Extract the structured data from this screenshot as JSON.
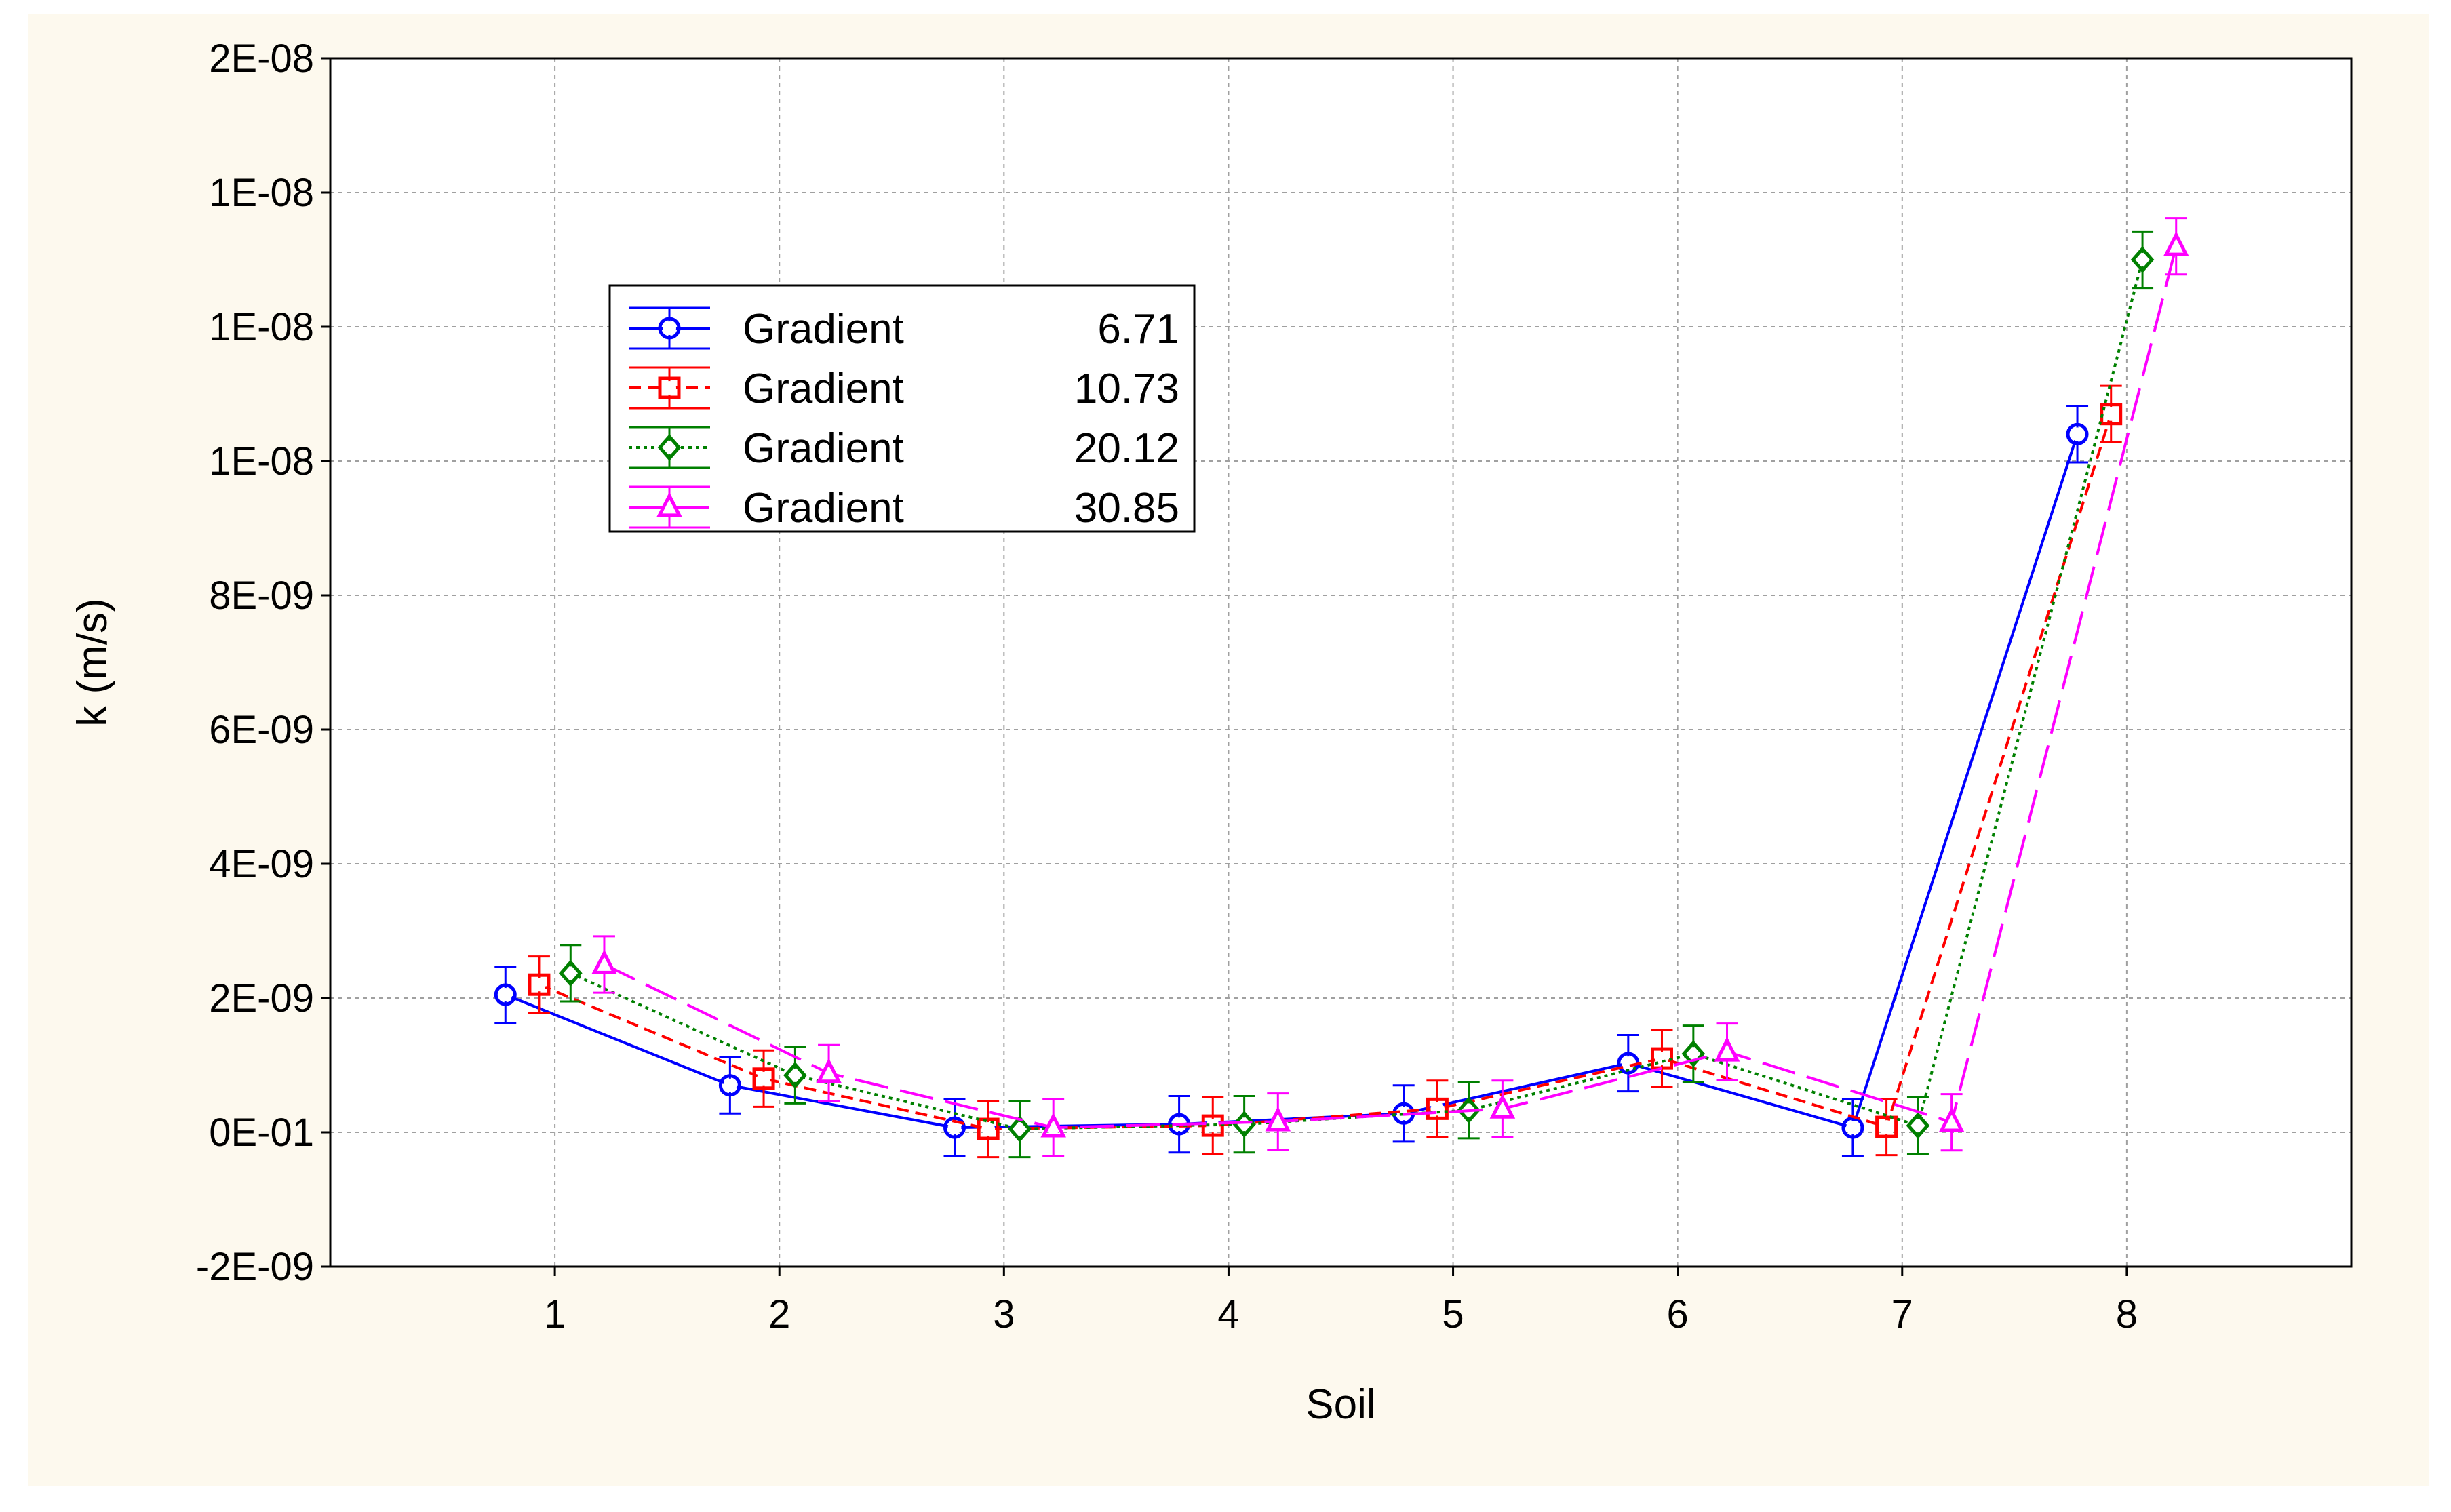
{
  "chart_data": {
    "type": "line",
    "xlabel": "Soil",
    "ylabel": "k (m/s)",
    "categories": [
      "1",
      "2",
      "3",
      "4",
      "5",
      "6",
      "7",
      "8"
    ],
    "ylim": [
      -2e-09,
      1.6e-08
    ],
    "y_ticks": [
      -2e-09,
      0,
      2e-09,
      4e-09,
      6e-09,
      8e-09,
      1e-08,
      1.2e-08,
      1.4e-08,
      1.6e-08
    ],
    "y_tick_labels": [
      "-2E-09",
      "0E-01",
      "2E-09",
      "4E-09",
      "6E-09",
      "8E-09",
      "1E-08",
      "1E-08",
      "1E-08",
      "2E-08"
    ],
    "grid": true,
    "legend_position": "top-left",
    "series": [
      {
        "name": "Gradient",
        "value_label": "6.71",
        "color": "#0000ff",
        "marker": "circle",
        "dash": "solid",
        "offset": -0.22,
        "values": [
          2.05e-09,
          7e-10,
          7e-11,
          1.2e-10,
          2.8e-10,
          1.03e-09,
          7e-11,
          1.04e-08
        ],
        "errors": [
          4.2e-10,
          4.2e-10,
          4.2e-10,
          4.2e-10,
          4.2e-10,
          4.2e-10,
          4.2e-10,
          4.2e-10
        ]
      },
      {
        "name": "Gradient",
        "value_label": "10.73",
        "color": "#ff0000",
        "marker": "square",
        "dash": "dashed",
        "offset": -0.07,
        "values": [
          2.2e-09,
          8e-10,
          5e-11,
          1e-10,
          3.5e-10,
          1.1e-09,
          8e-11,
          1.07e-08
        ],
        "errors": [
          4.2e-10,
          4.2e-10,
          4.2e-10,
          4.2e-10,
          4.2e-10,
          4.2e-10,
          4.2e-10,
          4.2e-10
        ]
      },
      {
        "name": "Gradient",
        "value_label": "20.12",
        "color": "#008000",
        "marker": "diamond",
        "dash": "dotted",
        "offset": 0.07,
        "values": [
          2.37e-09,
          8.5e-10,
          5e-11,
          1.2e-10,
          3.3e-10,
          1.17e-09,
          1e-10,
          1.3e-08
        ],
        "errors": [
          4.2e-10,
          4.2e-10,
          4.2e-10,
          4.2e-10,
          4.2e-10,
          4.2e-10,
          4.2e-10,
          4.2e-10
        ]
      },
      {
        "name": "Gradient",
        "value_label": "30.85",
        "color": "#ff00ff",
        "marker": "triangle",
        "dash": "longdash",
        "offset": 0.22,
        "values": [
          2.5e-09,
          8.8e-10,
          7e-11,
          1.6e-10,
          3.5e-10,
          1.2e-09,
          1.5e-10,
          1.32e-08
        ],
        "errors": [
          4.2e-10,
          4.2e-10,
          4.2e-10,
          4.2e-10,
          4.2e-10,
          4.2e-10,
          4.2e-10,
          4.2e-10
        ]
      }
    ]
  }
}
